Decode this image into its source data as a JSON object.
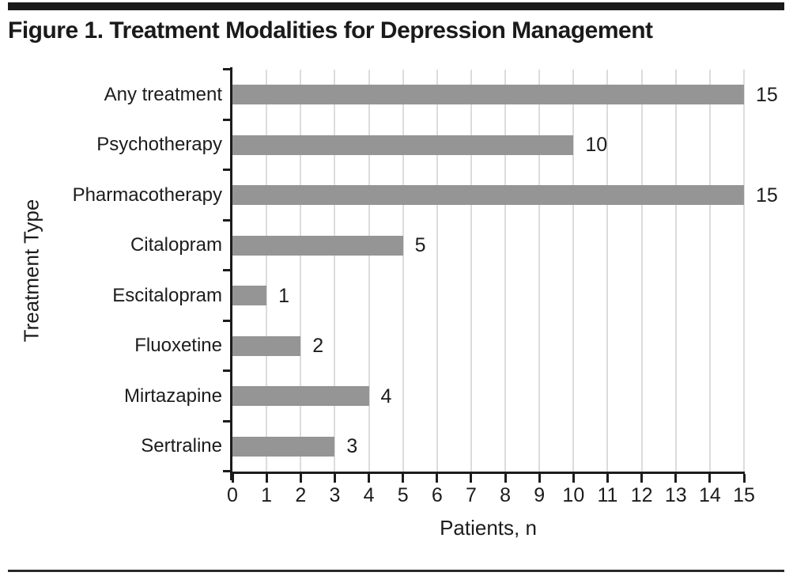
{
  "figure": {
    "title": "Figure 1. Treatment Modalities for Depression Management"
  },
  "chart_data": {
    "type": "bar",
    "orientation": "horizontal",
    "title": "Figure 1. Treatment Modalities for Depression Management",
    "categories": [
      "Any treatment",
      "Psychotherapy",
      "Pharmacotherapy",
      "Citalopram",
      "Escitalopram",
      "Fluoxetine",
      "Mirtazapine",
      "Sertraline"
    ],
    "values": [
      15,
      10,
      15,
      5,
      1,
      2,
      4,
      3
    ],
    "value_labels": [
      "15",
      "10",
      "15",
      "5",
      "1",
      "2",
      "4",
      "3"
    ],
    "xlabel": "Patients, n",
    "ylabel": "Treatment Type",
    "xlim": [
      0,
      15
    ],
    "xticks": [
      "0",
      "1",
      "2",
      "3",
      "4",
      "5",
      "6",
      "7",
      "8",
      "9",
      "10",
      "11",
      "12",
      "13",
      "14",
      "15"
    ],
    "grid": "vertical",
    "legend": "none",
    "colors": {
      "bar": "#959595",
      "gridline": "#dcdcdc",
      "axis": "#1c1c1c",
      "text": "#1c1c1c"
    }
  }
}
